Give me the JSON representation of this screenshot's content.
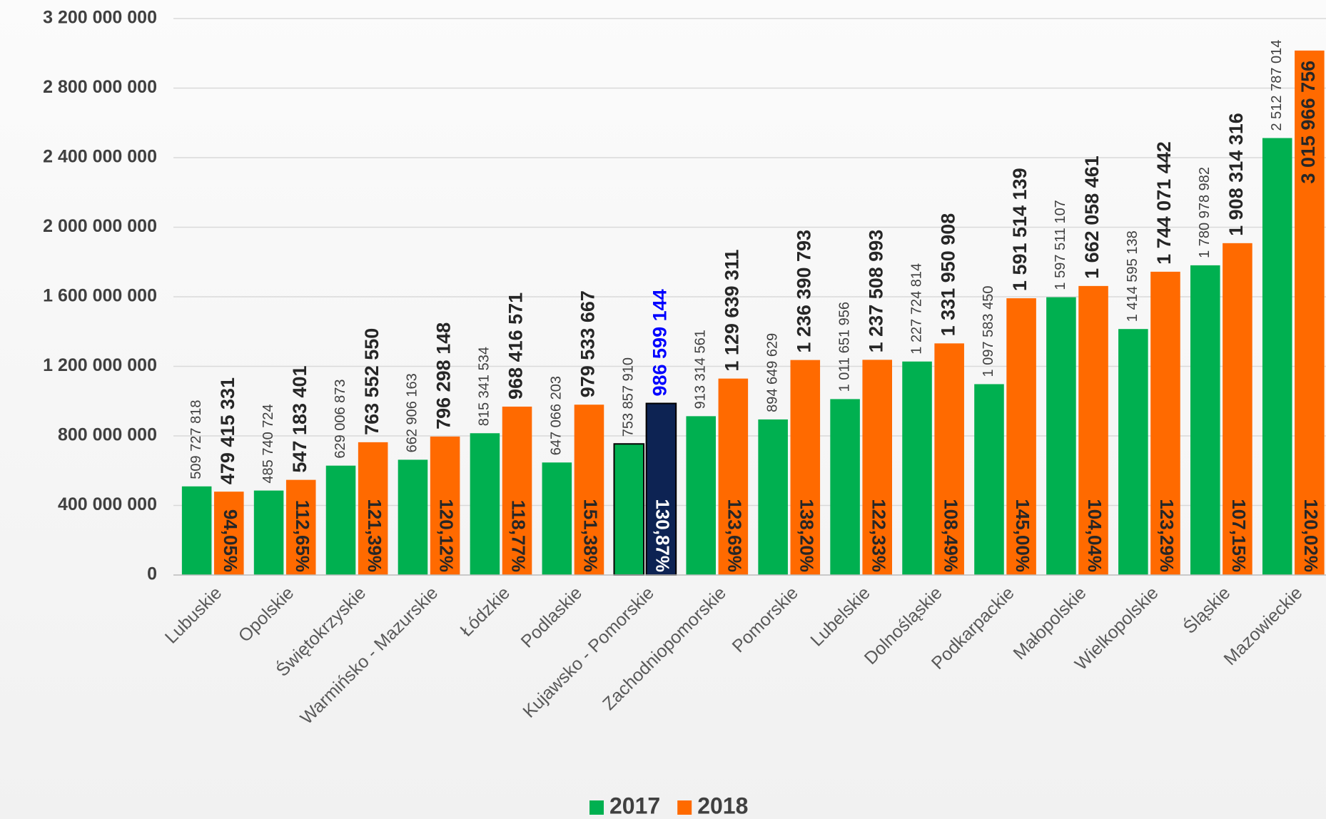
{
  "chart_data": {
    "type": "bar",
    "categories": [
      "Lubuskie",
      "Opolskie",
      "Świętokrzyskie",
      "Warmińsko - Mazurskie",
      "Łódzkie",
      "Podlaskie",
      "Kujawsko - Pomorskie",
      "Zachodniopomorskie",
      "Pomorskie",
      "Lubelskie",
      "Dolnośląskie",
      "Podkarpackie",
      "Małopolskie",
      "Wielkopolskie",
      "Śląskie",
      "Mazowieckie"
    ],
    "series": [
      {
        "name": "2017",
        "color": "#00b050",
        "values": [
          509727818,
          485740724,
          629006873,
          662906163,
          815341534,
          647066203,
          753857910,
          913314561,
          894649629,
          1011651956,
          1227724814,
          1097583450,
          1597511107,
          1414595138,
          1780978982,
          2512787014
        ],
        "value_labels": [
          "509 727 818",
          "485 740 724",
          "629 006 873",
          "662 906 163",
          "815 341 534",
          "647 066 203",
          "753 857 910",
          "913 314 561",
          "894 649 629",
          "1 011 651 956",
          "1 227 724 814",
          "1 097 583 450",
          "1 597 511 107",
          "1 414 595 138",
          "1 780 978 982",
          "2 512 787 014"
        ]
      },
      {
        "name": "2018",
        "color": "#ff6a00",
        "values": [
          479415331,
          547183401,
          763552550,
          796298148,
          968416571,
          979533667,
          986599144,
          1129639311,
          1236390793,
          1237508993,
          1331950908,
          1591514139,
          1662058461,
          1744071442,
          1908314316,
          3015966756
        ],
        "value_labels": [
          "479 415 331",
          "547 183 401",
          "763 552 550",
          "796 298 148",
          "968 416 571",
          "979 533 667",
          "986 599 144",
          "1 129 639 311",
          "1 236 390 793",
          "1 237 508 993",
          "1 331 950 908",
          "1 591 514 139",
          "1 662 058 461",
          "1 744 071 442",
          "1 908 314 316",
          "3 015 966 756"
        ]
      }
    ],
    "ratio": {
      "values": [
        94.05,
        112.65,
        121.39,
        120.12,
        118.77,
        151.38,
        130.87,
        123.69,
        138.2,
        122.33,
        108.49,
        145.0,
        104.04,
        123.29,
        107.15,
        120.02
      ],
      "value_labels": [
        "94,05%",
        "112,65%",
        "121,39%",
        "120,12%",
        "118,77%",
        "151,38%",
        "130,87%",
        "123,69%",
        "138,20%",
        "122,33%",
        "108,49%",
        "145,00%",
        "104,04%",
        "123,29%",
        "107,15%",
        "120,02%"
      ]
    },
    "highlight": {
      "category": "Kujawsko - Pomorskie",
      "color": "#0d2353",
      "label_color": "#0000ff"
    },
    "ylim": [
      0,
      3200000000
    ],
    "yticks": [
      0,
      {
        "value": 400000000,
        "label": "400 000 000"
      },
      {
        "value": 800000000,
        "label": "800 000 000"
      },
      {
        "value": 1200000000,
        "label": "1 200 000 000"
      },
      {
        "value": 1600000000,
        "label": "1 600 000 000"
      },
      {
        "value": 2000000000,
        "label": "2 000 000 000"
      },
      {
        "value": 2400000000,
        "label": "2 400 000 000"
      },
      {
        "value": 2800000000,
        "label": "2 800 000 000"
      },
      {
        "value": 3200000000,
        "label": "3 200 000 000"
      }
    ],
    "grid": true,
    "legend": "bottom"
  }
}
